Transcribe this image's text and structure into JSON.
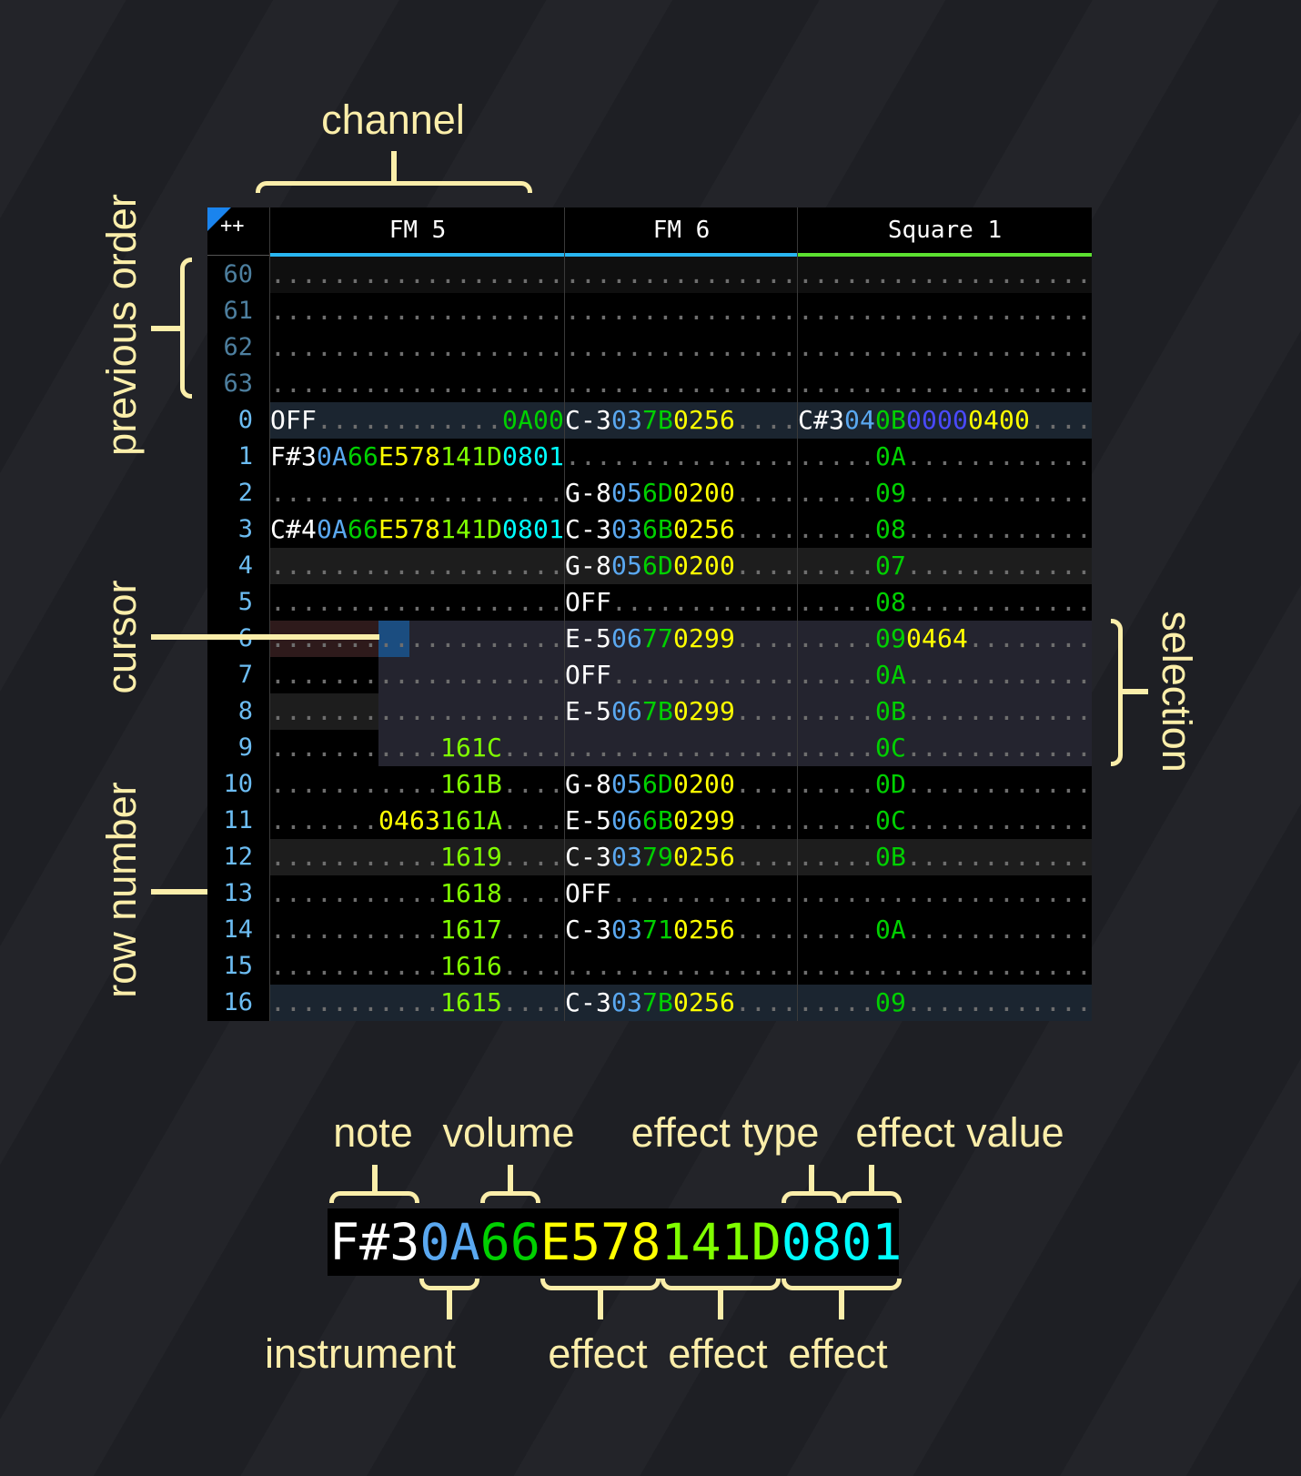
{
  "annotations": {
    "channel": "channel",
    "previous_order": "previous order",
    "cursor": "cursor",
    "row_number": "row number",
    "selection": "selection",
    "note": "note",
    "volume": "volume",
    "effect_type": "effect type",
    "effect_value": "effect value",
    "instrument": "instrument",
    "effect_1": "effect",
    "effect_2": "effect",
    "effect_3": "effect"
  },
  "colors": {
    "n": "#ffffff",
    "i": "#5aa8f0",
    "v": "#00d000",
    "y": "#ffff00",
    "g": "#80ff00",
    "c": "#00ffff",
    "p": "#4a4aff",
    ".": "#6e6e6e",
    "row_prev": "#4d7f9f",
    "row_cur": "#6cbcf2",
    "accent_corner": "#1a84ee",
    "fm_channel": "#29b6f0",
    "square_channel": "#5ce030",
    "annotation": "#fbeeaa"
  },
  "header": {
    "corner_label": "++",
    "channels": [
      {
        "name": "FM 5",
        "color_key": "fm_channel"
      },
      {
        "name": "FM 6",
        "color_key": "fm_channel"
      },
      {
        "name": "Square 1",
        "color_key": "square_channel"
      }
    ]
  },
  "rows": [
    {
      "num": "60",
      "prev": true,
      "hl": "prev",
      "cells": [
        {
          "t": "...................",
          "c": "..................."
        },
        {
          "t": "...............",
          "c": "..............."
        },
        {
          "t": "...................",
          "c": "..................."
        }
      ]
    },
    {
      "num": "61",
      "prev": true,
      "cells": [
        {
          "t": "...................",
          "c": "..................."
        },
        {
          "t": "...............",
          "c": "..............."
        },
        {
          "t": "...................",
          "c": "..................."
        }
      ]
    },
    {
      "num": "62",
      "prev": true,
      "cells": [
        {
          "t": "...................",
          "c": "..................."
        },
        {
          "t": "...............",
          "c": "..............."
        },
        {
          "t": "...................",
          "c": "..................."
        }
      ]
    },
    {
      "num": "63",
      "prev": true,
      "cells": [
        {
          "t": "...................",
          "c": "..................."
        },
        {
          "t": "...............",
          "c": "..............."
        },
        {
          "t": "...................",
          "c": "..................."
        }
      ]
    },
    {
      "num": "0",
      "hl": "bar",
      "cells": [
        {
          "t": "OFF............0A00",
          "c": "nnn............vvvv"
        },
        {
          "t": "C-3037B0256....",
          "c": "nnniivvyyyy...."
        },
        {
          "t": "C#3040B00000400....",
          "c": "nnniivvppppyyyy...."
        }
      ]
    },
    {
      "num": "1",
      "cells": [
        {
          "t": "F#30A66E578141D0801",
          "c": "nnniivvyyyyggggcccc"
        },
        {
          "t": "...............",
          "c": "..............."
        },
        {
          "t": ".....0A............",
          "c": ".....vv............"
        }
      ]
    },
    {
      "num": "2",
      "cells": [
        {
          "t": "...................",
          "c": "..................."
        },
        {
          "t": "G-8056D0200....",
          "c": "nnniivvyyyy...."
        },
        {
          "t": ".....09............",
          "c": ".....vv............"
        }
      ]
    },
    {
      "num": "3",
      "cells": [
        {
          "t": "C#40A66E578141D0801",
          "c": "nnniivvyyyyggggcccc"
        },
        {
          "t": "C-3036B0256....",
          "c": "nnniivvyyyy...."
        },
        {
          "t": ".....08............",
          "c": ".....vv............"
        }
      ]
    },
    {
      "num": "4",
      "hl": "beat",
      "cells": [
        {
          "t": "...................",
          "c": "..................."
        },
        {
          "t": "G-8056D0200....",
          "c": "nnniivvyyyy...."
        },
        {
          "t": ".....07............",
          "c": ".....vv............"
        }
      ]
    },
    {
      "num": "5",
      "cells": [
        {
          "t": "...................",
          "c": "..................."
        },
        {
          "t": "OFF............",
          "c": "nnn............"
        },
        {
          "t": ".....08............",
          "c": ".....vv............"
        }
      ]
    },
    {
      "num": "6",
      "cells": [
        {
          "t": "...................",
          "c": "..................."
        },
        {
          "t": "E-506770299....",
          "c": "nnniivvyyyy...."
        },
        {
          "t": ".....090464........",
          "c": ".....vvyyyy........"
        }
      ]
    },
    {
      "num": "7",
      "cells": [
        {
          "t": "...................",
          "c": "..................."
        },
        {
          "t": "OFF............",
          "c": "nnn............"
        },
        {
          "t": ".....0A............",
          "c": ".....vv............"
        }
      ]
    },
    {
      "num": "8",
      "hl": "beat",
      "cells": [
        {
          "t": "...................",
          "c": "..................."
        },
        {
          "t": "E-5067B0299....",
          "c": "nnniivvyyyy...."
        },
        {
          "t": ".....0B............",
          "c": ".....vv............"
        }
      ]
    },
    {
      "num": "9",
      "cells": [
        {
          "t": "...........161C....",
          "c": "...........gggg...."
        },
        {
          "t": "...............",
          "c": "..............."
        },
        {
          "t": ".....0C............",
          "c": ".....vv............"
        }
      ]
    },
    {
      "num": "10",
      "cells": [
        {
          "t": "...........161B....",
          "c": "...........gggg...."
        },
        {
          "t": "G-8056D0200....",
          "c": "nnniivvyyyy...."
        },
        {
          "t": ".....0D............",
          "c": ".....vv............"
        }
      ]
    },
    {
      "num": "11",
      "cells": [
        {
          "t": ".......0463161A....",
          "c": ".......yyyygggg...."
        },
        {
          "t": "E-5066B0299....",
          "c": "nnniivvyyyy...."
        },
        {
          "t": ".....0C............",
          "c": ".....vv............"
        }
      ]
    },
    {
      "num": "12",
      "hl": "beat",
      "cells": [
        {
          "t": "...........1619....",
          "c": "...........gggg...."
        },
        {
          "t": "C-303790256....",
          "c": "nnniivvyyyy...."
        },
        {
          "t": ".....0B............",
          "c": ".....vv............"
        }
      ]
    },
    {
      "num": "13",
      "cells": [
        {
          "t": "...........1618....",
          "c": "...........gggg...."
        },
        {
          "t": "OFF............",
          "c": "nnn............"
        },
        {
          "t": "...................",
          "c": "..................."
        }
      ]
    },
    {
      "num": "14",
      "cells": [
        {
          "t": "...........1617....",
          "c": "...........gggg...."
        },
        {
          "t": "C-303710256....",
          "c": "nnniivvyyyy...."
        },
        {
          "t": ".....0A............",
          "c": ".....vv............"
        }
      ]
    },
    {
      "num": "15",
      "cells": [
        {
          "t": "...........1616....",
          "c": "...........gggg...."
        },
        {
          "t": "...............",
          "c": "..............."
        },
        {
          "t": "...................",
          "c": "..................."
        }
      ]
    },
    {
      "num": "16",
      "hl": "bar",
      "cells": [
        {
          "t": "...........1615....",
          "c": "...........gggg...."
        },
        {
          "t": "C-3037B0256....",
          "c": "nnniivvyyyy...."
        },
        {
          "t": ".....09............",
          "c": ".....vv............"
        }
      ]
    }
  ],
  "selection": {
    "from_row": "6",
    "to_row": "9",
    "from_channel": "FM 5",
    "to_channel": "Square 1"
  },
  "cursor": {
    "row": "6",
    "channel": "FM 5"
  },
  "legend_example": {
    "t": "F#30A66E578141D0801",
    "c": "nnniivvyyyyggggcccc"
  }
}
